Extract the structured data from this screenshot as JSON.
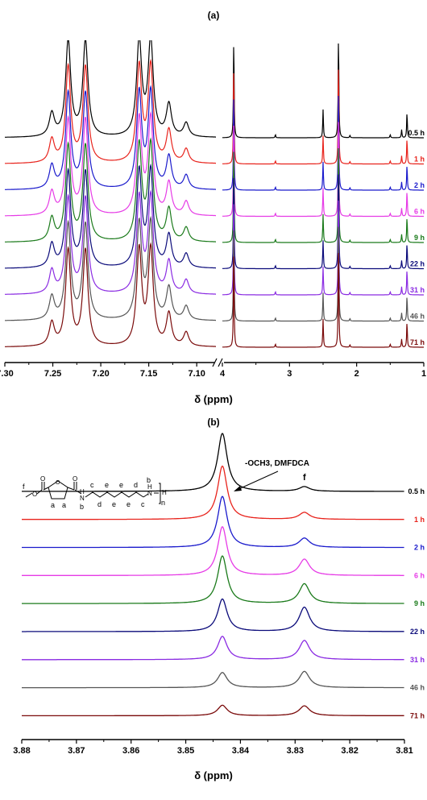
{
  "chart_data": [
    {
      "type": "line",
      "panel_label": "(a)",
      "xlabel": "δ (ppm)",
      "axis_break": true,
      "segments": [
        {
          "name": "aromatic",
          "xlim": [
            7.3,
            7.08
          ],
          "ticks": [
            "7.30",
            "7.25",
            "7.20",
            "7.15",
            "7.10"
          ],
          "peaks": [
            {
              "ppm": 7.251,
              "rel": 0.3
            },
            {
              "ppm": 7.234,
              "rel": 1.25
            },
            {
              "ppm": 7.216,
              "rel": 1.25
            },
            {
              "ppm": 7.16,
              "rel": 1.25
            },
            {
              "ppm": 7.148,
              "rel": 1.25
            },
            {
              "ppm": 7.129,
              "rel": 0.42
            },
            {
              "ppm": 7.111,
              "rel": 0.18
            }
          ]
        },
        {
          "name": "aliphatic",
          "xlim": [
            4.0,
            1.0
          ],
          "ticks": [
            "4",
            "3",
            "2",
            "1"
          ],
          "peaks": [
            {
              "ppm": 3.83,
              "rel": 1.25
            },
            {
              "ppm": 3.21,
              "rel": 0.04
            },
            {
              "ppm": 2.5,
              "rel": 0.35
            },
            {
              "ppm": 2.27,
              "rel": 1.3
            },
            {
              "ppm": 2.1,
              "rel": 0.03
            },
            {
              "ppm": 1.5,
              "rel": 0.04
            },
            {
              "ppm": 1.33,
              "rel": 0.1
            },
            {
              "ppm": 1.25,
              "rel": 0.32
            }
          ]
        }
      ],
      "series": [
        {
          "name": "0.5 h",
          "color": "#000000"
        },
        {
          "name": "1 h",
          "color": "#e8231c"
        },
        {
          "name": "2 h",
          "color": "#1a1acc"
        },
        {
          "name": "6 h",
          "color": "#e63be6"
        },
        {
          "name": "9 h",
          "color": "#1a7a1a"
        },
        {
          "name": "22 h",
          "color": "#0a0a7a"
        },
        {
          "name": "31 h",
          "color": "#8a2be2"
        },
        {
          "name": "46 h",
          "color": "#555555"
        },
        {
          "name": "71 h",
          "color": "#7a0a0a"
        }
      ]
    },
    {
      "type": "line",
      "panel_label": "(b)",
      "xlabel": "δ (ppm)",
      "xlim": [
        3.88,
        3.81
      ],
      "ticks": [
        "3.88",
        "3.87",
        "3.86",
        "3.85",
        "3.84",
        "3.83",
        "3.82",
        "3.81"
      ],
      "annotations": {
        "main_peak": "-OCH3, DMFDCA",
        "minor_peak": "f"
      },
      "series": [
        {
          "name": "0.5 h",
          "color": "#000000",
          "peak_3843": 1.0,
          "peak_3828": 0.08
        },
        {
          "name": "1 h",
          "color": "#e8231c",
          "peak_3843": 0.92,
          "peak_3828": 0.12
        },
        {
          "name": "2 h",
          "color": "#1a1acc",
          "peak_3843": 0.88,
          "peak_3828": 0.16
        },
        {
          "name": "6 h",
          "color": "#e63be6",
          "peak_3843": 0.84,
          "peak_3828": 0.28
        },
        {
          "name": "9 h",
          "color": "#1a7a1a",
          "peak_3843": 0.82,
          "peak_3828": 0.34
        },
        {
          "name": "22 h",
          "color": "#0a0a7a",
          "peak_3843": 0.56,
          "peak_3828": 0.42
        },
        {
          "name": "31 h",
          "color": "#8a2be2",
          "peak_3843": 0.4,
          "peak_3828": 0.33
        },
        {
          "name": "46 h",
          "color": "#555555",
          "peak_3843": 0.26,
          "peak_3828": 0.28
        },
        {
          "name": "71 h",
          "color": "#7a0a0a",
          "peak_3843": 0.18,
          "peak_3828": 0.17
        }
      ]
    }
  ],
  "structure": {
    "letters": [
      "f",
      "a",
      "a",
      "b",
      "c",
      "d",
      "e",
      "e",
      "e",
      "e",
      "d",
      "c",
      "b",
      "n"
    ],
    "atoms": [
      "O",
      "O",
      "O",
      "O",
      "N",
      "H",
      "N",
      "H",
      "H"
    ]
  }
}
